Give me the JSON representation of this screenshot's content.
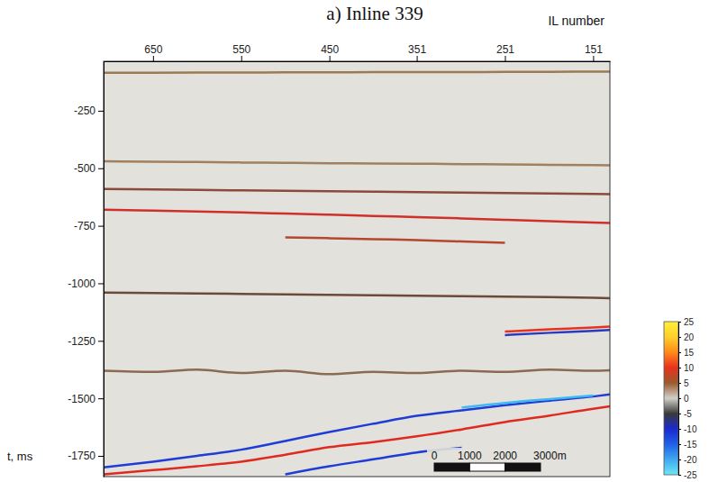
{
  "chart_data": {
    "type": "line",
    "title": "a) Inline 339",
    "x_label": "IL number",
    "y_label": "t, ms",
    "x": [
      706,
      650,
      600,
      550,
      500,
      450,
      400,
      351,
      300,
      251,
      200,
      151,
      132
    ],
    "xlim": [
      706,
      132
    ],
    "xticks": [
      650,
      550,
      450,
      351,
      251,
      151
    ],
    "ylim": [
      -1840,
      -35
    ],
    "yticks": [
      -250,
      -500,
      -750,
      -1000,
      -1250,
      -1500,
      -1750
    ],
    "series": [
      {
        "color": "#9c7b52",
        "values": [
          -85,
          -85,
          -84,
          -84,
          -83,
          -83,
          -82,
          -82,
          -82,
          -81,
          -81,
          -80,
          -80
        ]
      },
      {
        "color": "#a08060",
        "values": [
          -470,
          -472,
          -473,
          -475,
          -476,
          -478,
          -479,
          -480,
          -482,
          -483,
          -485,
          -486,
          -487
        ]
      },
      {
        "color": "#8c4a3a",
        "values": [
          -590,
          -592,
          -594,
          -596,
          -598,
          -600,
          -602,
          -604,
          -606,
          -608,
          -610,
          -612,
          -613
        ]
      },
      {
        "color": "#d0302a",
        "values": [
          -680,
          -684,
          -688,
          -692,
          -697,
          -702,
          -707,
          -712,
          -718,
          -724,
          -730,
          -736,
          -738
        ]
      },
      {
        "color": "#b5472e",
        "values": [
          null,
          null,
          null,
          null,
          -800,
          -804,
          -808,
          -812,
          -818,
          -824,
          null,
          null,
          null
        ]
      },
      {
        "color": "#6b4a3a",
        "values": [
          -1040,
          -1042,
          -1044,
          -1046,
          -1048,
          -1050,
          -1052,
          -1054,
          -1056,
          -1058,
          -1060,
          -1063,
          -1065
        ]
      },
      {
        "color": "#e8321e",
        "values": [
          null,
          null,
          null,
          null,
          null,
          null,
          null,
          null,
          null,
          -1210,
          -1200,
          -1192,
          -1188
        ]
      },
      {
        "color": "#2a3ac0",
        "values": [
          null,
          null,
          null,
          null,
          null,
          null,
          null,
          null,
          null,
          -1225,
          -1215,
          -1207,
          -1203
        ]
      },
      {
        "color": "#8a6a50",
        "values": [
          -1380,
          -1385,
          -1375,
          -1390,
          -1380,
          -1395,
          -1385,
          -1390,
          -1380,
          -1385,
          -1375,
          -1380,
          -1378
        ]
      },
      {
        "color": "#1f3cd6",
        "values": [
          -1800,
          -1775,
          -1750,
          -1723,
          -1685,
          -1646,
          -1610,
          -1576,
          -1552,
          -1530,
          -1510,
          -1492,
          -1483
        ]
      },
      {
        "color": "#40b8f0",
        "values": [
          null,
          null,
          null,
          null,
          null,
          null,
          null,
          null,
          -1540,
          -1520,
          -1503,
          -1488,
          null
        ]
      },
      {
        "color": "#e02a20",
        "values": [
          -1830,
          -1812,
          -1795,
          -1775,
          -1745,
          -1712,
          -1690,
          -1665,
          -1635,
          -1603,
          -1575,
          -1545,
          -1535
        ]
      },
      {
        "color": "#1f3cd6",
        "values": [
          null,
          null,
          null,
          null,
          -1830,
          -1795,
          -1765,
          -1735,
          -1715,
          null,
          null,
          null,
          null
        ]
      }
    ],
    "colorbar": {
      "range": [
        -25,
        25
      ],
      "ticks": [
        25,
        20,
        15,
        10,
        5,
        0,
        -5,
        -10,
        -15,
        -20,
        -25
      ],
      "colors": [
        "#6ae8f8",
        "#40a8f0",
        "#2060e8",
        "#1a2ad0",
        "#3a3a3a",
        "#d0cfc9",
        "#9b5a2e",
        "#e8321e",
        "#ff8a1a",
        "#ffd02a",
        "#ffef3a"
      ]
    },
    "scale_bar": {
      "range": [
        0,
        3000
      ],
      "ticks": [
        0,
        1000,
        2000,
        {
          "value": 3000,
          "label": "3000m"
        }
      ]
    }
  }
}
